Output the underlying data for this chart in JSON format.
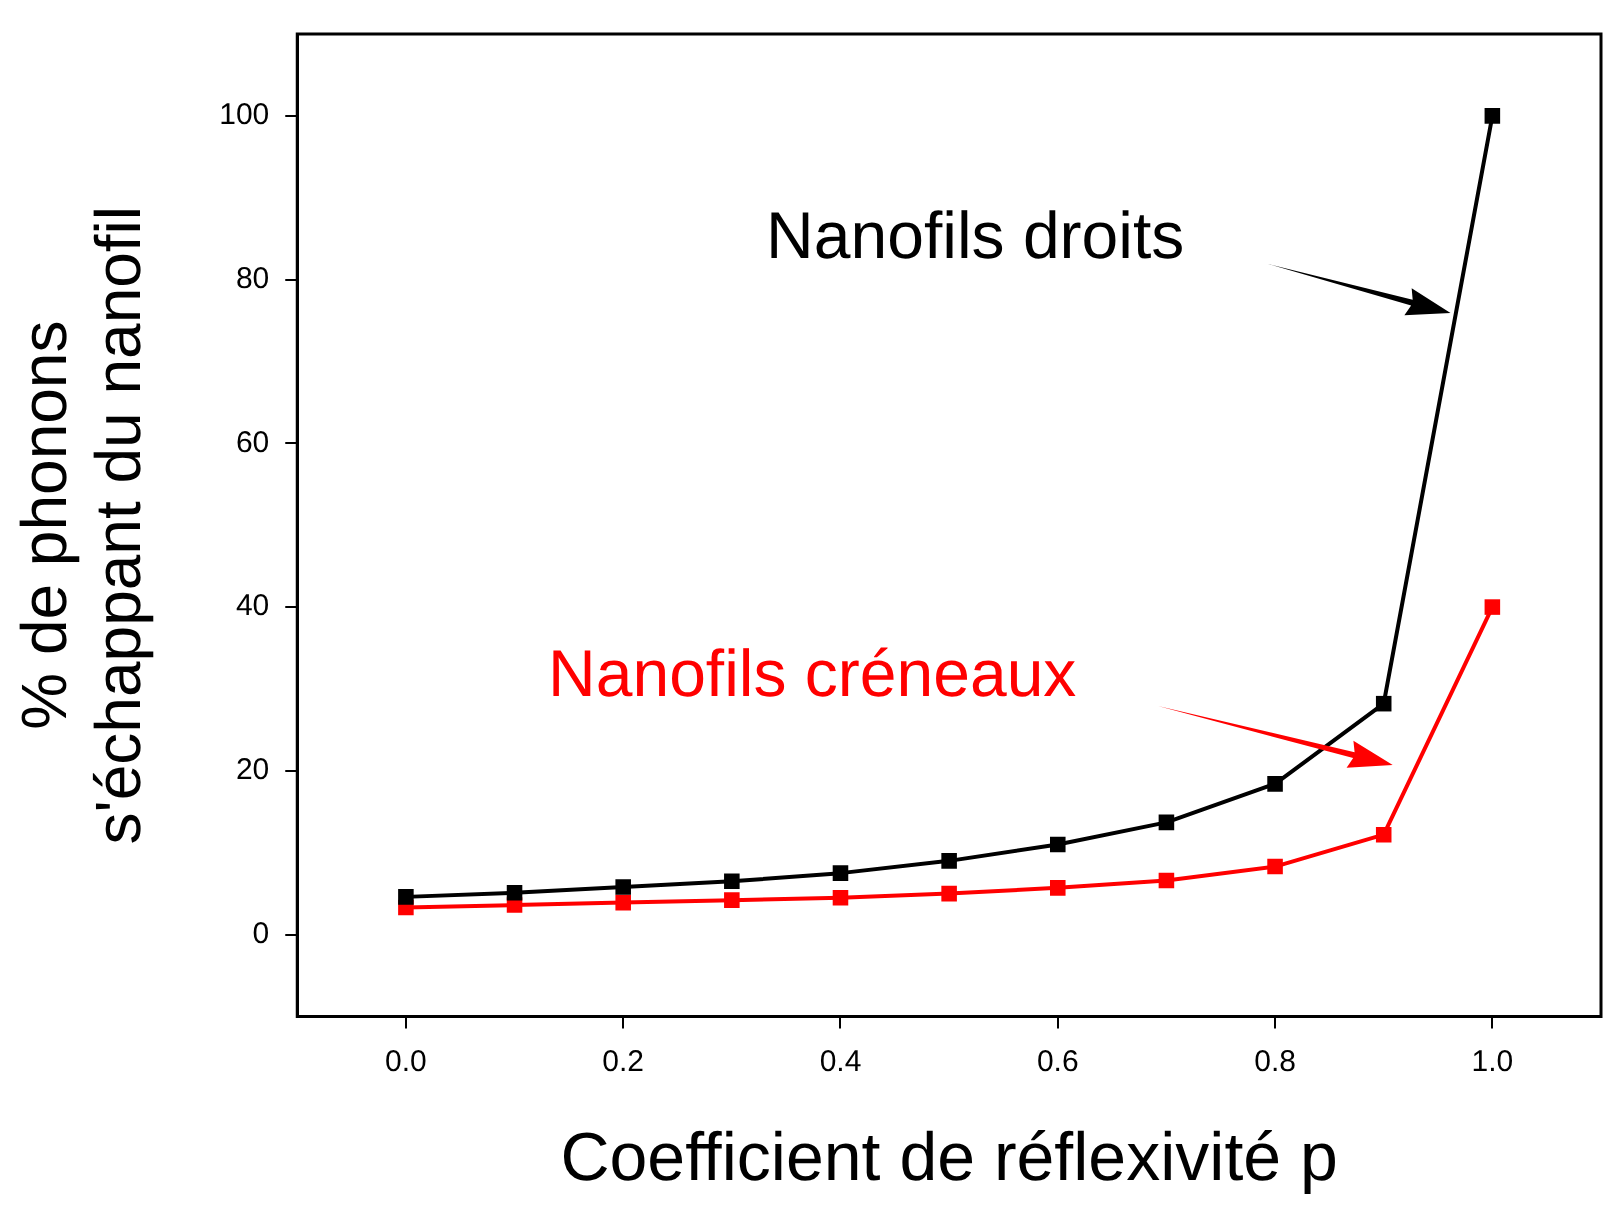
{
  "chart_data": {
    "type": "line",
    "xlabel": "Coefficient de réflexivité p",
    "ylabel": "% de phonons\ns'échappant du nanofil",
    "x": [
      0.0,
      0.1,
      0.2,
      0.3,
      0.4,
      0.5,
      0.6,
      0.7,
      0.8,
      0.9,
      1.0
    ],
    "series": [
      {
        "name": "Nanofils droits",
        "color": "#000000",
        "values": [
          4.6,
          5.1,
          5.8,
          6.5,
          7.5,
          9.0,
          11.0,
          13.7,
          18.4,
          28.2,
          100
        ]
      },
      {
        "name": "Nanofils créneaux",
        "color": "#ff0000",
        "values": [
          3.3,
          3.6,
          3.9,
          4.2,
          4.5,
          5.0,
          5.7,
          6.6,
          8.3,
          12.2,
          40
        ]
      }
    ],
    "xlim": [
      -0.1,
      1.1
    ],
    "xticks": [
      {
        "value": 0,
        "label": "0.0"
      },
      0.2,
      0.4,
      0.6,
      0.8,
      {
        "value": 1,
        "label": "1.0"
      }
    ],
    "ylim": [
      -10,
      110
    ],
    "yticks": [
      0,
      20,
      40,
      60,
      80,
      100
    ],
    "grid": false,
    "legend": "top left",
    "marker": "square",
    "line_style": "solid"
  }
}
